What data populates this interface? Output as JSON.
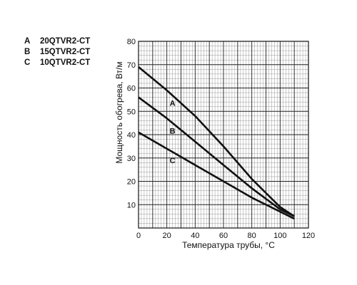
{
  "legend": [
    {
      "key": "A",
      "text": "20QTVR2-CT"
    },
    {
      "key": "B",
      "text": "15QTVR2-CT"
    },
    {
      "key": "C",
      "text": "10QTVR2-CT"
    }
  ],
  "chart_data": {
    "type": "line",
    "title": "",
    "xlabel": "Температура трубы, °C",
    "ylabel": "Мощность обогрева, Вт/м",
    "xlim": [
      0,
      120
    ],
    "ylim": [
      0,
      80
    ],
    "xticks": [
      0,
      20,
      40,
      60,
      80,
      100,
      120
    ],
    "yticks": [
      10,
      20,
      30,
      40,
      50,
      60,
      70,
      80
    ],
    "grid": true,
    "legend_position": "top-left",
    "series": [
      {
        "name": "A",
        "x": [
          0,
          20,
          40,
          60,
          80,
          100,
          110
        ],
        "y": [
          69,
          59,
          48,
          35,
          21,
          9,
          5
        ]
      },
      {
        "name": "B",
        "x": [
          0,
          20,
          40,
          60,
          80,
          100,
          110
        ],
        "y": [
          56,
          47,
          37,
          27,
          17,
          8,
          5
        ]
      },
      {
        "name": "C",
        "x": [
          0,
          20,
          40,
          60,
          80,
          100,
          110
        ],
        "y": [
          41,
          34,
          27,
          20,
          13,
          7,
          4
        ]
      }
    ]
  }
}
